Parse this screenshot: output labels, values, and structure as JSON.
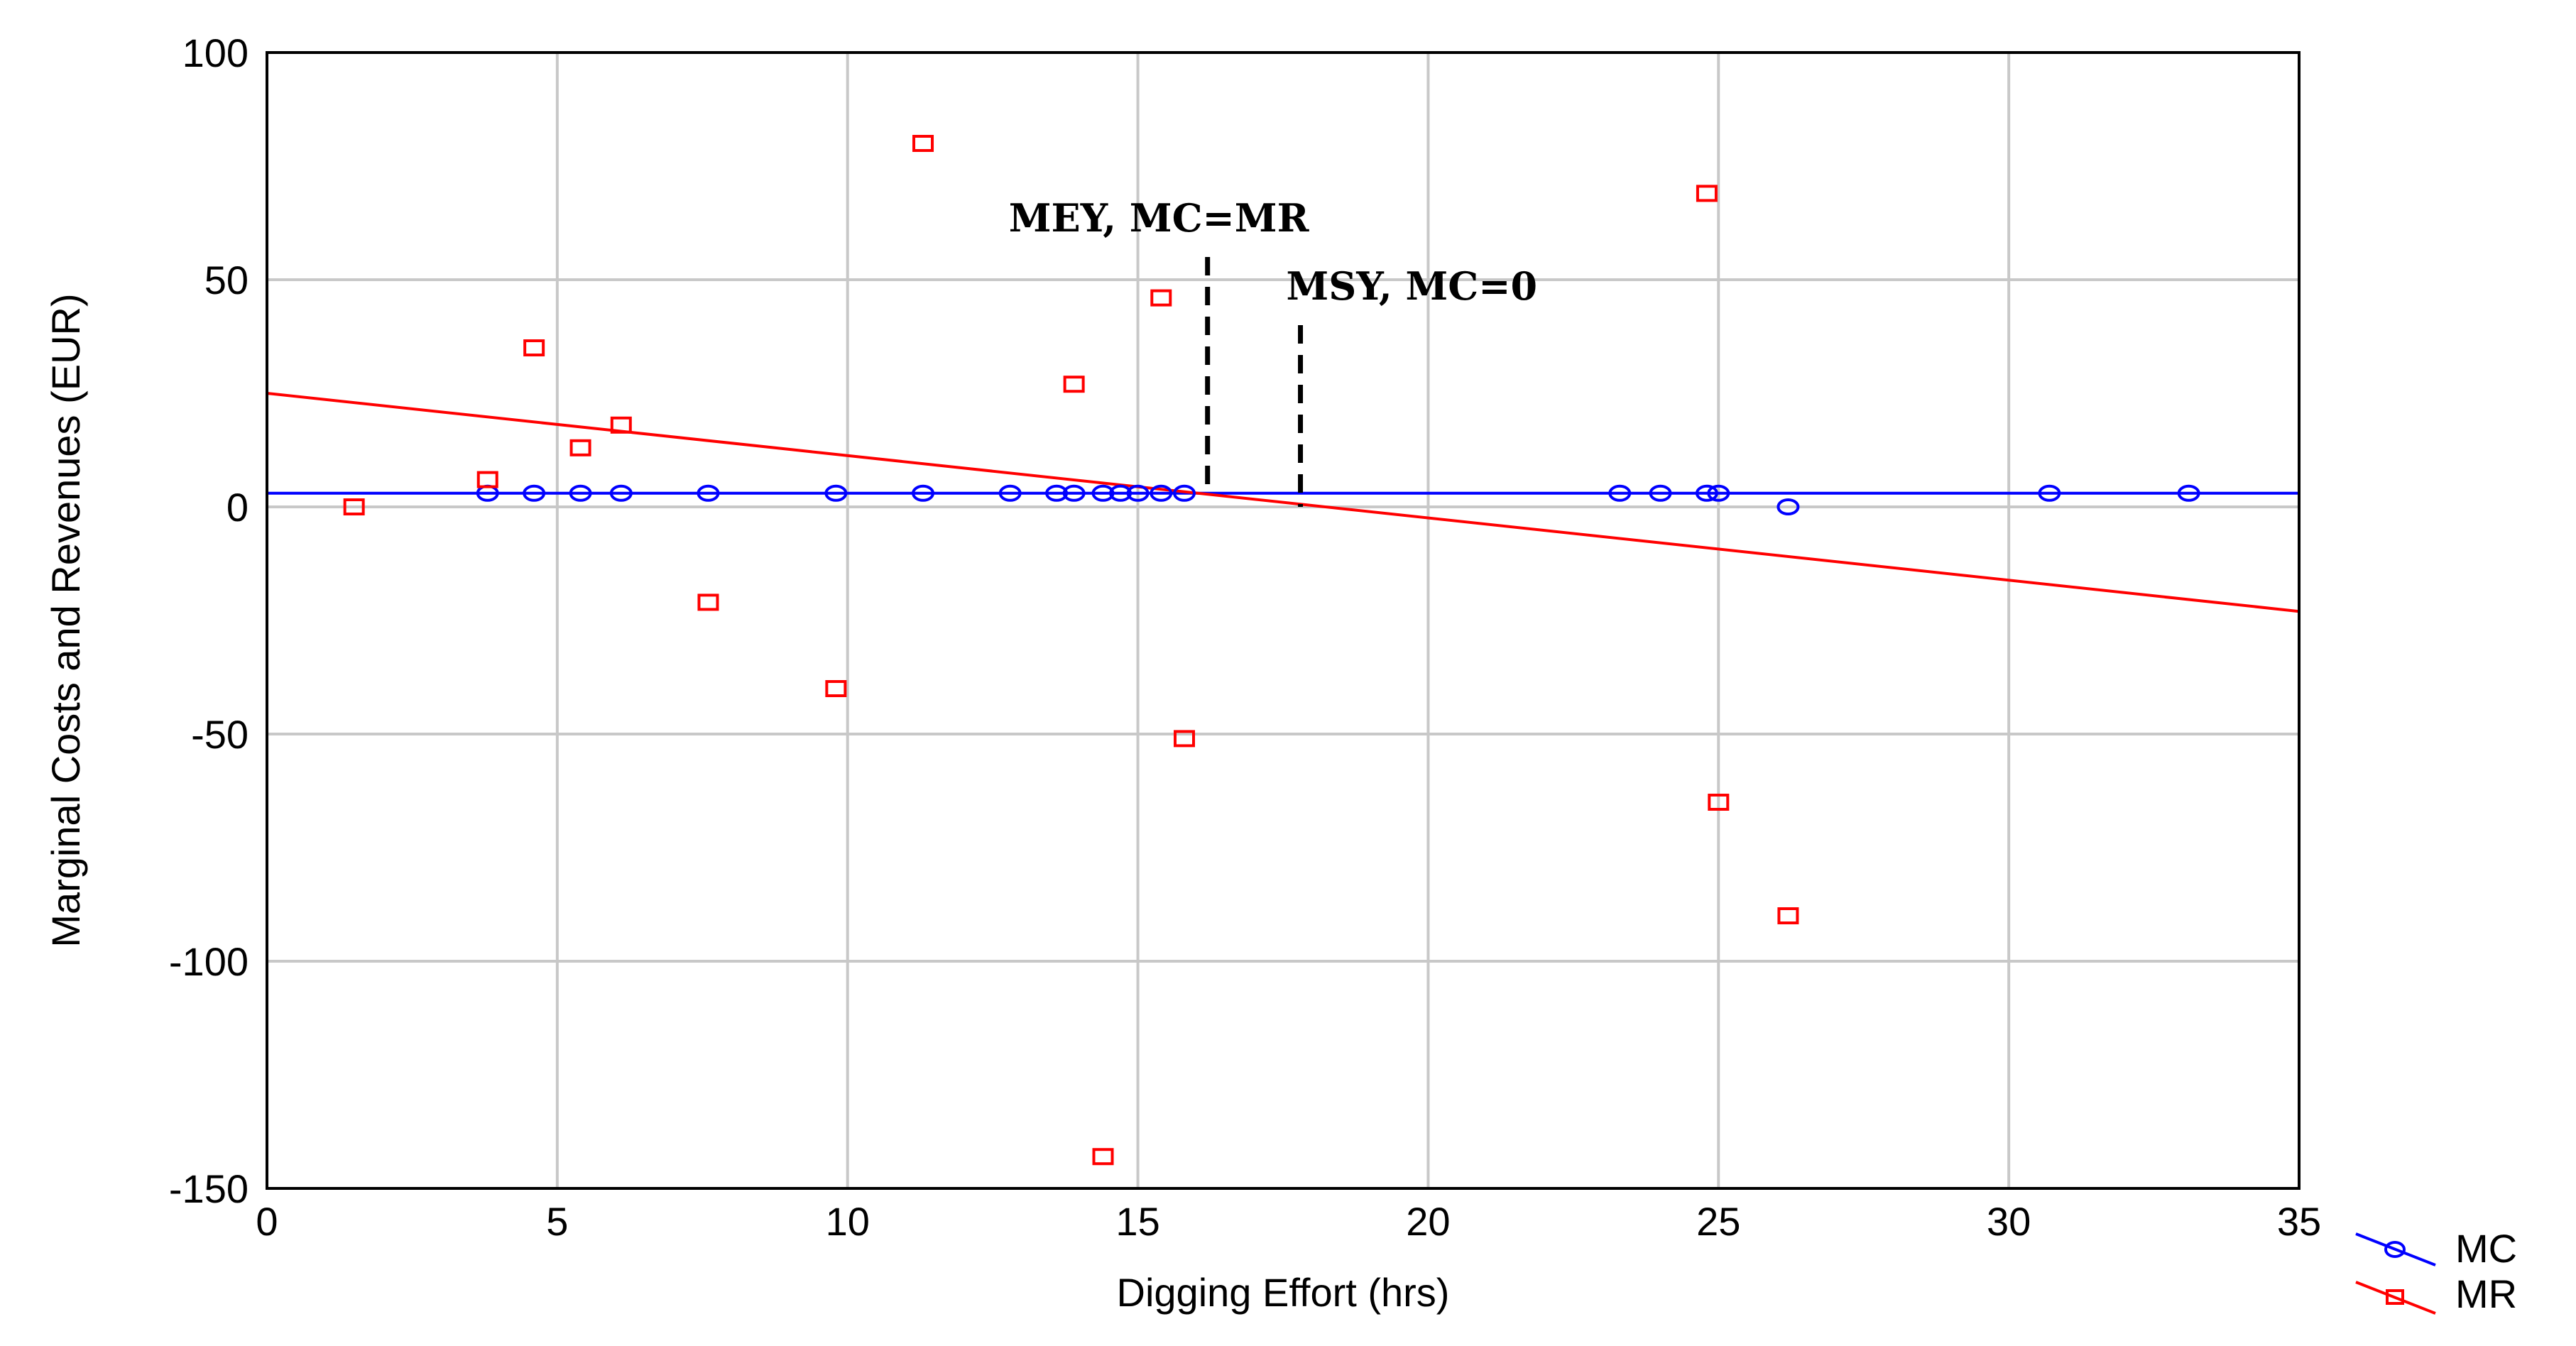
{
  "chart_data": {
    "type": "scatter",
    "title": "",
    "xlabel": "Digging Effort (hrs)",
    "ylabel": "Marginal Costs and Revenues (EUR)",
    "xlim": [
      0,
      35
    ],
    "ylim": [
      -150,
      100
    ],
    "x_ticks": [
      0,
      5,
      10,
      15,
      20,
      25,
      30,
      35
    ],
    "y_ticks": [
      100,
      50,
      0,
      -50,
      -100,
      -150
    ],
    "x_tick_labels": [
      "0",
      "5",
      "10",
      "15",
      "20",
      "25",
      "30",
      "35"
    ],
    "y_tick_labels": [
      "100",
      "50",
      "0",
      "-50",
      "-100",
      "-150"
    ],
    "grid": true,
    "legend_position": "bottom-right-outside",
    "series": [
      {
        "name": "MC",
        "marker": "circle",
        "color": "#0000ff",
        "x": [
          3.8,
          4.6,
          5.4,
          6.1,
          7.6,
          9.8,
          11.3,
          12.8,
          13.6,
          13.9,
          14.4,
          14.7,
          15.0,
          15.4,
          15.8,
          23.3,
          24.0,
          24.8,
          25.0,
          26.2,
          30.7,
          33.1
        ],
        "y": [
          3,
          3,
          3,
          3,
          3,
          3,
          3,
          3,
          3,
          3,
          3,
          3,
          3,
          3,
          3,
          3,
          3,
          3,
          3,
          0,
          3,
          3
        ],
        "fit": {
          "x": [
            0,
            35
          ],
          "y": [
            3,
            3
          ]
        }
      },
      {
        "name": "MR",
        "marker": "square",
        "color": "#ff0000",
        "x": [
          1.5,
          3.8,
          4.6,
          5.4,
          6.1,
          7.6,
          9.8,
          11.3,
          13.9,
          14.4,
          15.4,
          15.8,
          24.8,
          25.0,
          26.2
        ],
        "y": [
          0,
          6,
          35,
          13,
          18,
          -21,
          -40,
          80,
          27,
          -143,
          46,
          -51,
          69,
          -65,
          -90
        ],
        "fit": {
          "x": [
            0,
            35
          ],
          "y": [
            25,
            -23
          ]
        }
      }
    ],
    "annotations": [
      {
        "text": "MEY, MC=MR",
        "x": 16.2,
        "y_top": 55,
        "y_bottom": 3
      },
      {
        "text": "MSY, MC=0",
        "x": 17.8,
        "y_top": 40,
        "y_bottom": 0
      }
    ]
  },
  "legend": {
    "mc_label": "MC",
    "mr_label": "MR"
  }
}
